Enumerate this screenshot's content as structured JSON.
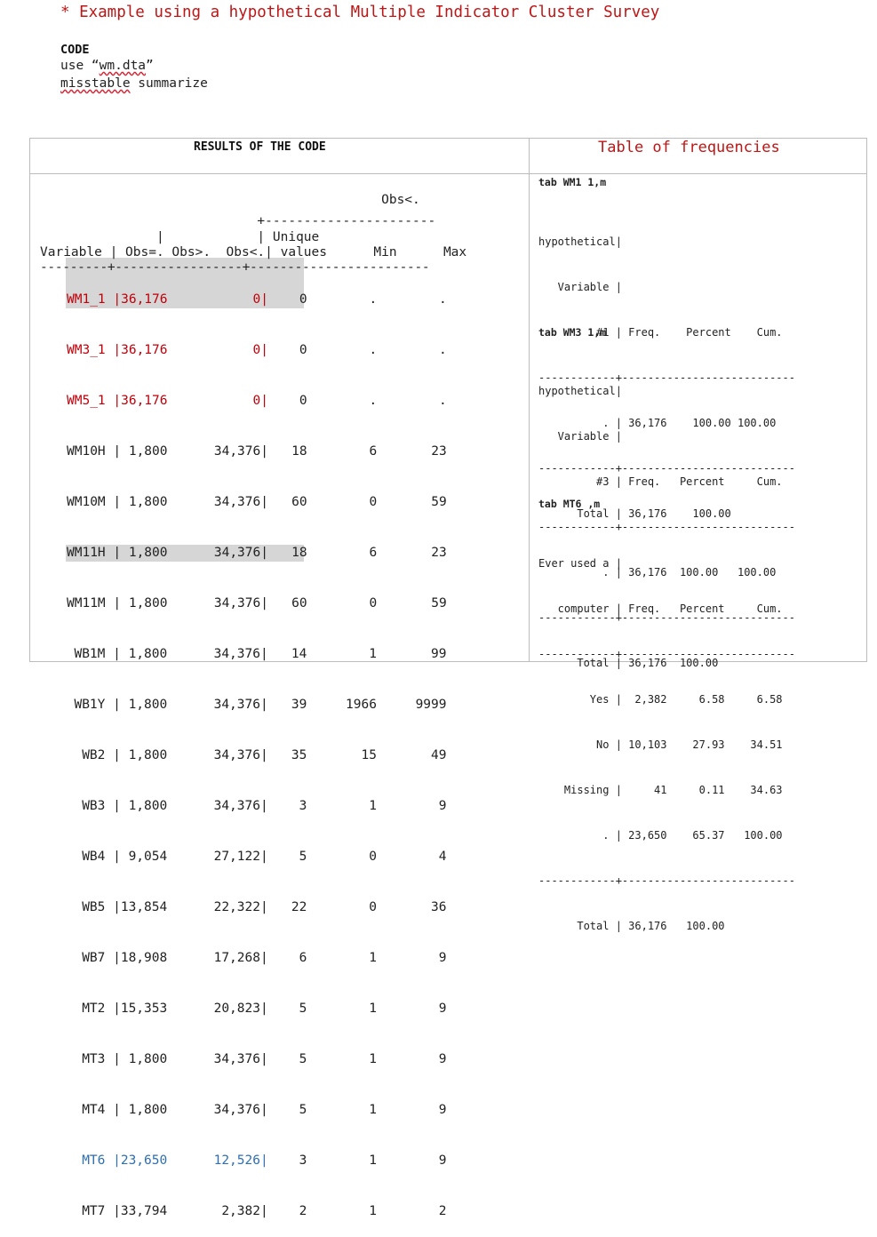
{
  "code_block": {
    "comment": "* Example using a hypothetical Multiple Indicator Cluster Survey",
    "heading": "CODE",
    "line1_prefix": "use “",
    "line1_file": "wm.dta",
    "line1_suffix": "”",
    "line2_cmd": "misstable",
    "line2_rest": " summarize"
  },
  "results": {
    "title": "RESULTS OF THE CODE",
    "header_lines": [
      "                                            Obs<.",
      "                            +----------------------",
      "               |            | Unique",
      "Variable | Obs=. Obs>.  Obs<.| values      Min      Max",
      "---------+-----------------+------------------------"
    ],
    "rows": [
      {
        "text": "WM1_1 |36,176           0|",
        "rest": "    0        .        .",
        "style": "red"
      },
      {
        "text": "WM3_1 |36,176           0|",
        "rest": "    0        .        .",
        "style": "red"
      },
      {
        "text": "WM5_1 |36,176           0|",
        "rest": "    0        .        .",
        "style": "red"
      },
      {
        "text": "WM10H | 1,800      34,376|",
        "rest": "   18        6       23",
        "style": ""
      },
      {
        "text": "WM10M | 1,800      34,376|",
        "rest": "   60        0       59",
        "style": ""
      },
      {
        "text": "WM11H | 1,800      34,376|",
        "rest": "   18        6       23",
        "style": ""
      },
      {
        "text": "WM11M | 1,800      34,376|",
        "rest": "   60        0       59",
        "style": ""
      },
      {
        "text": "  WB1M | 1,800      34,376|",
        "rest": "   14        1       99",
        "style": ""
      },
      {
        "text": "  WB1Y | 1,800      34,376|",
        "rest": "   39     1966     9999",
        "style": ""
      },
      {
        "text": "   WB2 | 1,800      34,376|",
        "rest": "   35       15       49",
        "style": ""
      },
      {
        "text": "   WB3 | 1,800      34,376|",
        "rest": "    3        1        9",
        "style": ""
      },
      {
        "text": "   WB4 | 9,054      27,122|",
        "rest": "    5        0        4",
        "style": ""
      },
      {
        "text": "   WB5 |13,854      22,322|",
        "rest": "   22        0       36",
        "style": ""
      },
      {
        "text": "   WB7 |18,908      17,268|",
        "rest": "    6        1        9",
        "style": ""
      },
      {
        "text": "   MT2 |15,353      20,823|",
        "rest": "    5        1        9",
        "style": ""
      },
      {
        "text": "   MT3 | 1,800      34,376|",
        "rest": "    5        1        9",
        "style": ""
      },
      {
        "text": "   MT4 | 1,800      34,376|",
        "rest": "    5        1        9",
        "style": ""
      },
      {
        "text": "   MT6 |23,650      12,526|",
        "rest": "    3        1        9",
        "style": "blue"
      },
      {
        "text": "   MT7 |33,794       2,382|",
        "rest": "    2        1        2",
        "style": ""
      }
    ]
  },
  "frequencies": {
    "title": "Table of frequencies",
    "block1": {
      "command": "tab WM1 1,m",
      "lines": [
        "hypothetical|",
        "   Variable |",
        "         #1 | Freq.    Percent    Cum.",
        "------------+---------------------------",
        "          . | 36,176    100.00 100.00",
        "------------+---------------------------",
        "      Total | 36,176    100.00"
      ]
    },
    "block2": {
      "command": "tab WM3 1,m",
      "lines": [
        "hypothetical|",
        "   Variable |",
        "         #3 | Freq.   Percent     Cum.",
        "------------+---------------------------",
        "          . | 36,176  100.00   100.00",
        "------------+---------------------------",
        "      Total | 36,176  100.00"
      ]
    },
    "block3": {
      "command": "tab MT6 ,m",
      "lines": [
        "Ever used a |",
        "   computer | Freq.   Percent     Cum.",
        "------------+---------------------------",
        "        Yes |  2,382     6.58     6.58",
        "         No | 10,103    27.93    34.51",
        "    Missing |     41     0.11    34.63",
        "          . | 23,650    65.37   100.00",
        "------------+---------------------------",
        "      Total | 36,176   100.00"
      ]
    }
  }
}
